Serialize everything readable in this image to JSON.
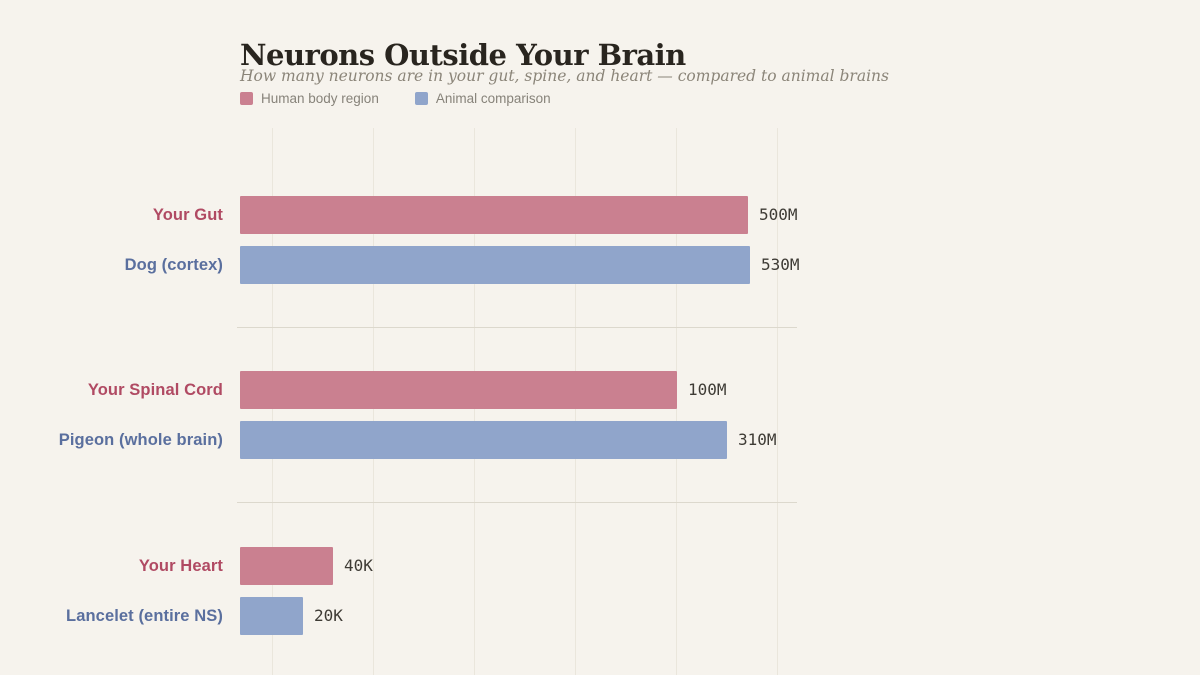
{
  "page": {
    "background": "#f6f3ed"
  },
  "header": {
    "title": "Neurons Outside Your Brain",
    "subtitle": "How many neurons are in your gut, spine, and heart — compared to animal brains"
  },
  "legend": {
    "items": [
      {
        "id": "human",
        "label": "Human body region",
        "color": "#ca8090"
      },
      {
        "id": "animal",
        "label": "Animal comparison",
        "color": "#90a5cb"
      }
    ]
  },
  "chart_data": {
    "type": "bar",
    "orientation": "horizontal",
    "scale": "log10",
    "grid": true,
    "legend_position": "top-left",
    "title": "Neurons Outside Your Brain",
    "subtitle": "How many neurons are in your gut, spine, and heart — compared to animal brains",
    "series_styles": {
      "human": {
        "bar_color": "#ca8090",
        "label_color": "#b04a63",
        "legend_label": "Human body region"
      },
      "animal": {
        "bar_color": "#90a5cb",
        "label_color": "#5a6f9e",
        "legend_label": "Animal comparison"
      }
    },
    "groups": [
      {
        "bars": [
          {
            "category": "Your Gut",
            "series": "human",
            "value": 500000000,
            "value_label": "500M"
          },
          {
            "category": "Dog (cortex)",
            "series": "animal",
            "value": 530000000,
            "value_label": "530M"
          }
        ]
      },
      {
        "bars": [
          {
            "category": "Your Spinal Cord",
            "series": "human",
            "value": 100000000,
            "value_label": "100M"
          },
          {
            "category": "Pigeon (whole brain)",
            "series": "animal",
            "value": 310000000,
            "value_label": "310M"
          }
        ]
      },
      {
        "bars": [
          {
            "category": "Your Heart",
            "series": "human",
            "value": 40000,
            "value_label": "40K"
          },
          {
            "category": "Lancelet (entire NS)",
            "series": "animal",
            "value": 20000,
            "value_label": "20K"
          }
        ]
      }
    ]
  }
}
